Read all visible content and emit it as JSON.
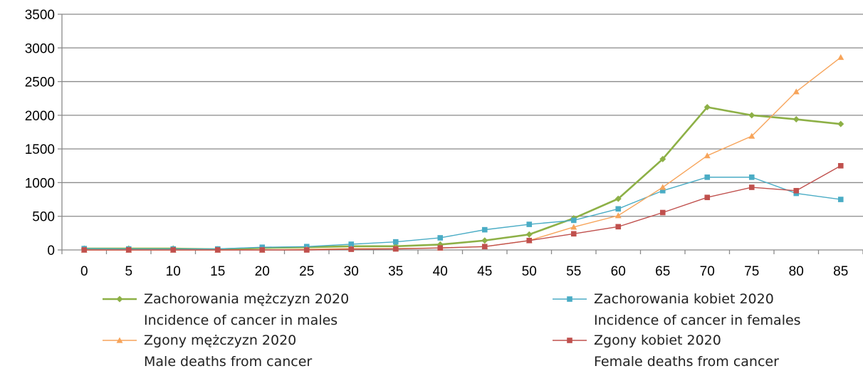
{
  "chart_data": {
    "type": "line",
    "x": [
      0,
      5,
      10,
      15,
      20,
      25,
      30,
      35,
      40,
      45,
      50,
      55,
      60,
      65,
      70,
      75,
      80,
      85
    ],
    "ylim": [
      0,
      3500
    ],
    "yticks": [
      0,
      500,
      1000,
      1500,
      2000,
      2500,
      3000,
      3500
    ],
    "grid": "horizontal",
    "legend_position": "bottom",
    "series": [
      {
        "name": "Zachorowania mężczyzn 2020",
        "subtitle": "Incidence of cancer in males",
        "color": "#8db046",
        "marker": "diamond",
        "values": [
          20,
          20,
          20,
          10,
          30,
          40,
          55,
          55,
          80,
          140,
          230,
          470,
          760,
          1350,
          2120,
          2000,
          1940,
          1870
        ]
      },
      {
        "name": "Zachorowania kobiet 2020",
        "subtitle": "Incidence of cancer in females",
        "color": "#4aacc5",
        "marker": "square",
        "values": [
          20,
          15,
          15,
          15,
          40,
          50,
          85,
          120,
          180,
          300,
          380,
          440,
          610,
          880,
          1080,
          1080,
          840,
          750
        ]
      },
      {
        "name": "Zgony mężczyzn 2020",
        "subtitle": "Male deaths from cancer",
        "color": "#f7a45a",
        "marker": "triangle",
        "values": [
          0,
          0,
          0,
          0,
          0,
          10,
          20,
          20,
          30,
          50,
          140,
          340,
          510,
          930,
          1400,
          1690,
          2350,
          2860
        ]
      },
      {
        "name": "Zgony kobiet 2020",
        "subtitle": "Female deaths from cancer",
        "color": "#c0504d",
        "marker": "square",
        "values": [
          0,
          0,
          0,
          0,
          0,
          0,
          10,
          15,
          30,
          50,
          140,
          240,
          345,
          555,
          780,
          930,
          880,
          1250
        ]
      }
    ]
  }
}
